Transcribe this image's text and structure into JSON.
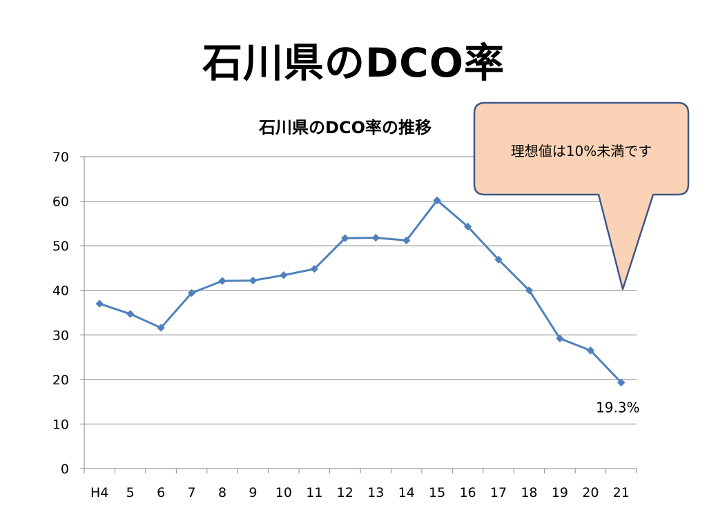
{
  "slide": {
    "title": "石川県のDCO率"
  },
  "callout": {
    "text": "理想値は10%未満です"
  },
  "colors": {
    "series": "#4F81BD",
    "gridline": "#868686",
    "callout_fill": "#FAD3B6",
    "callout_stroke": "#3F5787"
  },
  "chart_data": {
    "type": "line",
    "title": "石川県のDCO率の推移",
    "xlabel": "",
    "ylabel": "",
    "categories": [
      "H4",
      "5",
      "6",
      "7",
      "8",
      "9",
      "10",
      "11",
      "12",
      "13",
      "14",
      "15",
      "16",
      "17",
      "18",
      "19",
      "20",
      "21"
    ],
    "series": [
      {
        "values": [
          37.0,
          34.7,
          31.6,
          39.4,
          42.1,
          42.2,
          43.4,
          44.8,
          51.7,
          51.8,
          51.2,
          60.2,
          54.3,
          46.9,
          40.0,
          29.2,
          26.5,
          19.3
        ]
      }
    ],
    "ylim": [
      0,
      70
    ],
    "yticks": [
      0,
      10,
      20,
      30,
      40,
      50,
      60,
      70
    ],
    "grid": true,
    "legend": "none",
    "annotations": [
      {
        "category": "21",
        "text": "19.3%"
      }
    ]
  }
}
